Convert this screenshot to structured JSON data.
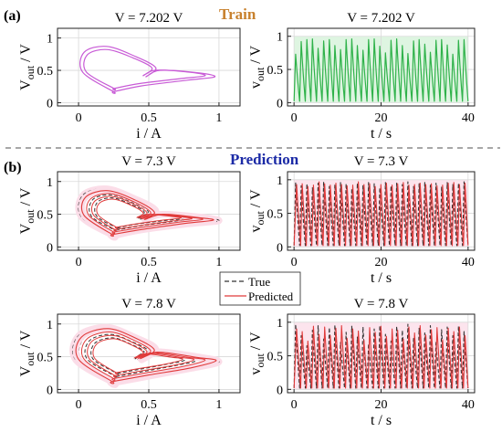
{
  "panel_labels": {
    "a": "(a)",
    "b": "(b)"
  },
  "section_titles": {
    "train": "Train",
    "prediction": "Prediction"
  },
  "colors": {
    "train_phase": "#c85bd6",
    "train_time": "#2fb24a",
    "train_fill": "#d6f2d9",
    "true_line": "#333333",
    "predicted_line": "#e03a3a",
    "pink_bg": "#fbdde8",
    "train_title": "#c8812d",
    "prediction_title": "#1b2aa6"
  },
  "legend": {
    "true": "True",
    "predicted": "Predicted"
  },
  "chart_data": [
    {
      "id": "a-phase",
      "type": "line",
      "title": "V = 7.202 V",
      "xlabel": "i / A",
      "ylabel": "V_out / V",
      "xlim": [
        -0.15,
        1.15
      ],
      "ylim": [
        -0.05,
        1.15
      ],
      "xticks": [
        "0",
        "0.5",
        "1"
      ],
      "yticks": [
        "0",
        "0.5",
        "1"
      ],
      "series": [
        {
          "values": [
            [
              0.25,
              0.17
            ],
            [
              0.45,
              0.26
            ],
            [
              0.78,
              0.35
            ],
            [
              0.97,
              0.4
            ],
            [
              0.86,
              0.46
            ],
            [
              0.58,
              0.5
            ],
            [
              0.48,
              0.4
            ],
            [
              0.55,
              0.54
            ],
            [
              0.4,
              0.72
            ],
            [
              0.2,
              0.87
            ],
            [
              0.04,
              0.78
            ],
            [
              0.03,
              0.47
            ],
            [
              0.25,
              0.17
            ]
          ]
        }
      ]
    },
    {
      "id": "a-time",
      "type": "line",
      "title": "V = 7.202 V",
      "xlabel": "t / s",
      "ylabel": "v_out / V",
      "xlim": [
        -1.5,
        41.5
      ],
      "ylim": [
        -0.05,
        1.12
      ],
      "xticks": [
        "0",
        "20",
        "40"
      ],
      "yticks": [
        "0",
        "0.5",
        "1"
      ],
      "series": [
        {
          "peaks": [
            0.73,
            0.92,
            0.95,
            0.96,
            0.82,
            0.93,
            0.95,
            0.86,
            0.8,
            0.95,
            0.96,
            0.86,
            0.79,
            0.95,
            0.96,
            0.85,
            0.75,
            0.94,
            0.96,
            0.86,
            0.74,
            0.93,
            0.95,
            0.88,
            0.76,
            0.94,
            0.95,
            0.87,
            0.73,
            0.94,
            0.95
          ]
        }
      ]
    },
    {
      "id": "b1-phase",
      "type": "line",
      "title": "V = 7.3 V",
      "xlabel": "i / A",
      "ylabel": "V_out / V",
      "xlim": [
        -0.15,
        1.15
      ],
      "ylim": [
        -0.05,
        1.15
      ],
      "xticks": [
        "0",
        "0.5",
        "1"
      ],
      "yticks": [
        "0",
        "0.5",
        "1"
      ],
      "series": [
        {
          "name": "True",
          "values": [
            [
              0.25,
              0.17
            ],
            [
              0.45,
              0.26
            ],
            [
              0.78,
              0.35
            ],
            [
              1.0,
              0.4
            ],
            [
              0.86,
              0.46
            ],
            [
              0.58,
              0.5
            ],
            [
              0.48,
              0.4
            ],
            [
              0.55,
              0.56
            ],
            [
              0.4,
              0.74
            ],
            [
              0.2,
              0.89
            ],
            [
              0.03,
              0.79
            ],
            [
              0.02,
              0.46
            ],
            [
              0.25,
              0.17
            ]
          ]
        },
        {
          "name": "Predicted",
          "values": [
            [
              0.24,
              0.19
            ],
            [
              0.46,
              0.27
            ],
            [
              0.76,
              0.36
            ],
            [
              0.96,
              0.41
            ],
            [
              0.85,
              0.45
            ],
            [
              0.6,
              0.5
            ],
            [
              0.47,
              0.42
            ],
            [
              0.54,
              0.53
            ],
            [
              0.41,
              0.71
            ],
            [
              0.21,
              0.86
            ],
            [
              0.05,
              0.76
            ],
            [
              0.04,
              0.48
            ],
            [
              0.24,
              0.19
            ]
          ]
        }
      ]
    },
    {
      "id": "b1-time",
      "type": "line",
      "title": "V = 7.3 V",
      "xlabel": "t / s",
      "ylabel": "v_out / V",
      "xlim": [
        -1.5,
        41.5
      ],
      "ylim": [
        -0.05,
        1.12
      ],
      "xticks": [
        "0",
        "20",
        "40"
      ],
      "yticks": [
        "0",
        "0.5",
        "1"
      ],
      "series": [
        {
          "name": "True",
          "peaks": [
            0.96,
            0.91,
            0.94,
            0.88,
            0.95,
            0.97,
            0.9,
            0.93,
            0.96,
            0.94,
            0.87,
            0.95,
            0.92,
            0.96,
            0.94,
            0.88,
            0.96,
            0.91,
            0.95,
            0.93,
            0.97,
            0.9,
            0.94,
            0.96,
            0.92,
            0.95,
            0.89,
            0.96,
            0.93,
            0.95,
            0.97
          ]
        },
        {
          "name": "Predicted",
          "peaks": [
            0.93,
            0.94,
            0.9,
            0.92,
            0.97,
            0.94,
            0.92,
            0.95,
            0.93,
            0.91,
            0.92,
            0.97,
            0.93,
            0.94,
            0.9,
            0.93,
            0.95,
            0.92,
            0.94,
            0.96,
            0.92,
            0.93,
            0.95,
            0.93,
            0.94,
            0.91,
            0.92,
            0.95,
            0.96,
            0.93,
            0.95
          ]
        }
      ]
    },
    {
      "id": "b2-phase",
      "type": "line",
      "title": "V = 7.8 V",
      "xlabel": "i / A",
      "ylabel": "V_out / V",
      "xlim": [
        -0.15,
        1.15
      ],
      "ylim": [
        -0.05,
        1.15
      ],
      "xticks": [
        "0",
        "0.5",
        "1"
      ],
      "yticks": [
        "0",
        "0.5",
        "1"
      ],
      "series": [
        {
          "name": "True",
          "values": [
            [
              0.25,
              0.1
            ],
            [
              0.5,
              0.2
            ],
            [
              0.8,
              0.32
            ],
            [
              1.0,
              0.42
            ],
            [
              0.85,
              0.5
            ],
            [
              0.55,
              0.58
            ],
            [
              0.45,
              0.45
            ],
            [
              0.55,
              0.62
            ],
            [
              0.4,
              0.8
            ],
            [
              0.2,
              0.95
            ],
            [
              0.0,
              0.82
            ],
            [
              -0.02,
              0.45
            ],
            [
              0.25,
              0.1
            ]
          ]
        },
        {
          "name": "Predicted",
          "values": [
            [
              0.24,
              0.12
            ],
            [
              0.5,
              0.22
            ],
            [
              0.8,
              0.33
            ],
            [
              0.98,
              0.44
            ],
            [
              0.84,
              0.49
            ],
            [
              0.56,
              0.57
            ],
            [
              0.44,
              0.47
            ],
            [
              0.54,
              0.6
            ],
            [
              0.41,
              0.78
            ],
            [
              0.21,
              0.93
            ],
            [
              0.02,
              0.8
            ],
            [
              0.0,
              0.46
            ],
            [
              0.24,
              0.12
            ]
          ]
        }
      ]
    },
    {
      "id": "b2-time",
      "type": "line",
      "title": "V = 7.8 V",
      "xlabel": "t / s",
      "ylabel": "v_out / V",
      "xlim": [
        -1.5,
        41.5
      ],
      "ylim": [
        -0.05,
        1.12
      ],
      "xticks": [
        "0",
        "20",
        "40"
      ],
      "yticks": [
        "0",
        "0.5",
        "1"
      ],
      "series": [
        {
          "name": "True",
          "peaks": [
            0.97,
            0.8,
            0.65,
            0.88,
            0.95,
            0.75,
            0.92,
            0.96,
            0.7,
            0.85,
            0.94,
            0.78,
            0.93,
            0.68,
            0.9,
            0.95,
            0.82,
            0.72,
            0.94,
            0.88,
            0.97,
            0.76,
            0.91,
            0.84,
            0.95,
            0.7,
            0.89,
            0.93,
            0.8,
            0.94,
            0.86
          ]
        },
        {
          "name": "Predicted",
          "peaks": [
            0.9,
            0.86,
            0.72,
            0.94,
            0.82,
            0.93,
            0.8,
            0.91,
            0.95,
            0.76,
            0.9,
            0.87,
            0.73,
            0.92,
            0.85,
            0.94,
            0.79,
            0.9,
            0.88,
            0.75,
            0.93,
            0.84,
            0.95,
            0.81,
            0.89,
            0.92,
            0.74,
            0.91,
            0.86,
            0.93,
            0.8
          ]
        }
      ]
    }
  ]
}
